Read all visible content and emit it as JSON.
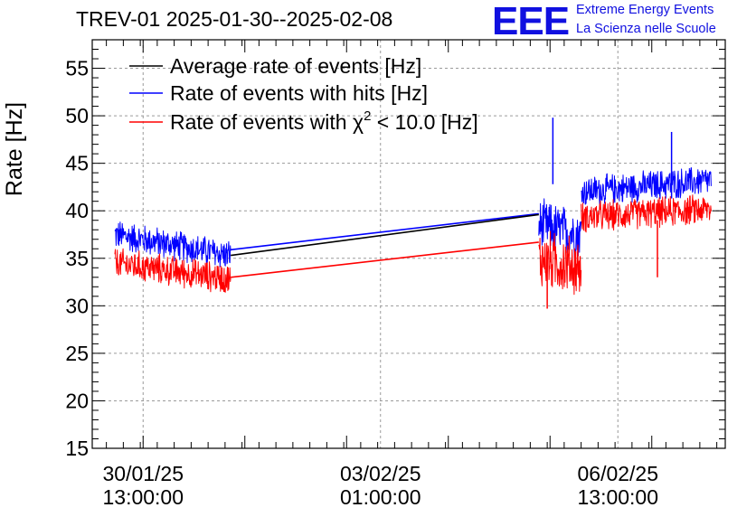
{
  "header": {
    "title": "TREV-01 2025-01-30--2025-02-08",
    "logo_text": "EEE",
    "logo_line1": "Extreme Energy Events",
    "logo_line2": "La Scienza nelle Scuole",
    "logo_color": "#1010e0"
  },
  "chart_data": {
    "type": "line",
    "ylabel": "Rate [Hz]",
    "ylim": [
      15,
      58
    ],
    "yticks": [
      15,
      20,
      25,
      30,
      35,
      40,
      45,
      50,
      55
    ],
    "xlim": [
      "2025-01-29 19:00",
      "2025-02-08 03:00"
    ],
    "xtick_labels": [
      {
        "date": "30/01/25",
        "time": "13:00:00"
      },
      {
        "date": "03/02/25",
        "time": "01:00:00"
      },
      {
        "date": "06/02/25",
        "time": "13:00:00"
      }
    ],
    "grid": true,
    "legend_placement": "top-left",
    "series": [
      {
        "name": "Average rate of events [Hz]",
        "color": "#000000",
        "segments": [
          {
            "x": [
              "2025-01-31 20:00",
              "2025-02-05 09:00"
            ],
            "y": [
              35.3,
              39.6
            ]
          }
        ]
      },
      {
        "name": "Rate of events with hits [Hz]",
        "color": "#0000ff",
        "segments": [
          {
            "start": "2025-01-30 03:00",
            "end": "2025-01-31 20:00",
            "y_start": 37.5,
            "y_end": 35.3,
            "noise": 1.8
          },
          {
            "x": [
              "2025-01-31 20:00",
              "2025-02-05 09:00"
            ],
            "y": [
              35.9,
              39.7
            ]
          },
          {
            "start": "2025-02-05 09:00",
            "end": "2025-02-06 00:00",
            "y_start": 38.5,
            "y_end": 37.5,
            "noise": 3.0
          },
          {
            "start": "2025-02-06 00:00",
            "end": "2025-02-07 22:00",
            "y_start": 42.0,
            "y_end": 43.2,
            "noise": 1.8
          }
        ],
        "spikes": [
          {
            "x": "2025-02-05 14:00",
            "y": 49.8
          },
          {
            "x": "2025-02-07 08:00",
            "y": 48.3
          }
        ]
      },
      {
        "name": "Rate of events with χ² < 10.0 [Hz]",
        "legend_main": "Rate of events with χ",
        "legend_sup": "2",
        "legend_tail": " < 10.0 [Hz]",
        "color": "#ff0000",
        "segments": [
          {
            "start": "2025-01-30 03:00",
            "end": "2025-01-31 20:00",
            "y_start": 34.5,
            "y_end": 32.8,
            "noise": 1.8
          },
          {
            "x": [
              "2025-01-31 20:00",
              "2025-02-05 09:00"
            ],
            "y": [
              33.0,
              36.7
            ]
          },
          {
            "start": "2025-02-05 09:00",
            "end": "2025-02-06 00:00",
            "y_start": 35.0,
            "y_end": 34.0,
            "noise": 3.5
          },
          {
            "start": "2025-02-06 00:00",
            "end": "2025-02-07 22:00",
            "y_start": 39.3,
            "y_end": 40.2,
            "noise": 1.8
          }
        ],
        "spikes": [
          {
            "x": "2025-02-05 12:00",
            "y": 29.7
          },
          {
            "x": "2025-02-07 03:00",
            "y": 33.0
          }
        ]
      }
    ]
  }
}
